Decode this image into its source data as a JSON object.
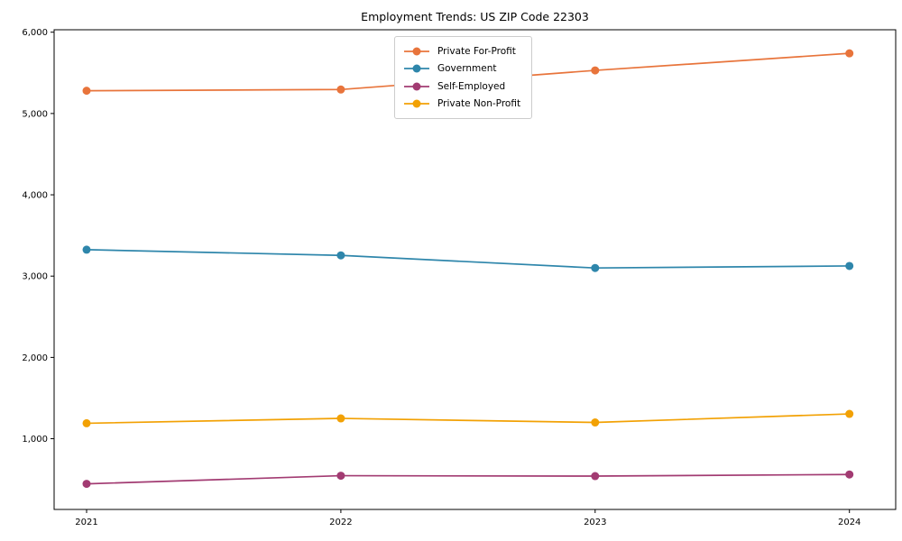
{
  "window": {
    "background": "#ffffff"
  },
  "chart_data": {
    "type": "line",
    "title": "Employment Trends: US ZIP Code 22303",
    "xlabel": "",
    "ylabel": "",
    "x": [
      "2021",
      "2022",
      "2023",
      "2024"
    ],
    "series": [
      {
        "name": "Private For-Profit",
        "color": "#E8743B",
        "values": [
          5280,
          5295,
          5530,
          5740
        ]
      },
      {
        "name": "Government",
        "color": "#2E86AB",
        "values": [
          3325,
          3255,
          3100,
          3125
        ]
      },
      {
        "name": "Self-Employed",
        "color": "#A23B72",
        "values": [
          445,
          545,
          540,
          560
        ]
      },
      {
        "name": "Private Non-Profit",
        "color": "#F2A104",
        "values": [
          1190,
          1250,
          1200,
          1305
        ]
      }
    ],
    "ylim": [
      130,
      6030
    ],
    "yticks": [
      {
        "value": 1000,
        "label": "1,000"
      },
      {
        "value": 2000,
        "label": "2,000"
      },
      {
        "value": 3000,
        "label": "3,000"
      },
      {
        "value": 4000,
        "label": "4,000"
      },
      {
        "value": 5000,
        "label": "5,000"
      },
      {
        "value": 6000,
        "label": "6,000"
      }
    ],
    "legend_position": "upper center",
    "grid": false,
    "marker": "circle"
  }
}
